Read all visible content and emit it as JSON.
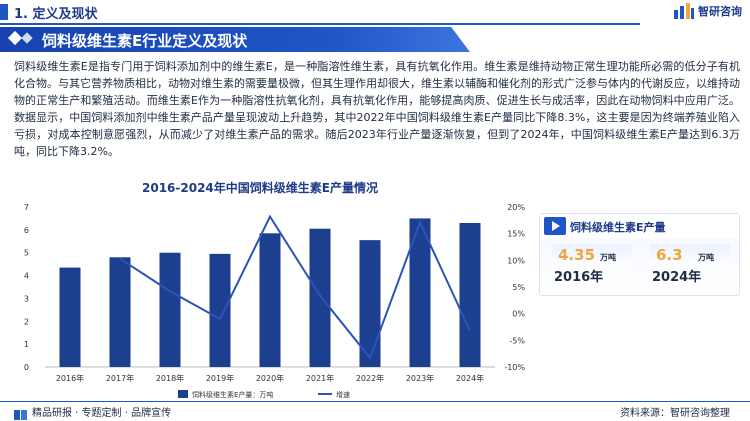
{
  "header": {
    "section_label": "1. 定义及现状",
    "logo_text": "智研咨询"
  },
  "title_banner": {
    "title": "饲料级维生素E行业定义及现状"
  },
  "paragraph": "饲料级维生素E是指专门用于饲料添加剂中的维生素E，是一种脂溶性维生素，具有抗氧化作用。维生素是维持动物正常生理功能所必需的低分子有机化合物。与其它营养物质相比，动物对维生素的需要量极微，但其生理作用却很大，维生素以辅酶和催化剂的形式广泛参与体内的代谢反应，以维持动物的正常生产和繁殖活动。而维生素E作为一种脂溶性抗氧化剂，具有抗氧化作用，能够提高肉质、促进生长与成活率，因此在动物饲料中应用广泛。数据显示，中国饲料添加剂中维生素产品产量呈现波动上升趋势，其中2022年中国饲料级维生素E产量同比下降8.3%，这主要是因为终端养殖业陷入亏损，对成本控制意愿强烈，从而减少了对维生素产品的需求。随后2023年行业产量逐渐恢复，但到了2024年，中国饲料级维生素E产量达到6.3万吨，同比下降3.2%。",
  "chart_data": {
    "type": "bar",
    "title": "2016-2024年中国饲料级维生素E产量情况",
    "categories": [
      "2016年",
      "2017年",
      "2018年",
      "2019年",
      "2020年",
      "2021年",
      "2022年",
      "2023年",
      "2024年"
    ],
    "series": [
      {
        "name": "饲料级维生素E产量：万吨",
        "type": "bar",
        "axis": "left",
        "values": [
          4.35,
          4.8,
          5.0,
          4.95,
          5.85,
          6.05,
          5.55,
          6.5,
          6.3
        ]
      },
      {
        "name": "增速",
        "type": "line",
        "axis": "right",
        "values": [
          null,
          10.3,
          4.2,
          -1.0,
          18.2,
          3.4,
          -8.3,
          17.1,
          -3.2
        ]
      }
    ],
    "left_ticks": [
      "0",
      "1",
      "2",
      "3",
      "4",
      "5",
      "6",
      "7"
    ],
    "right_ticks": [
      "-10%",
      "-5%",
      "0%",
      "5%",
      "10%",
      "15%",
      "20%"
    ],
    "ylim_left": [
      0,
      7
    ],
    "ylim_right": [
      -10,
      20
    ],
    "legend_position": "bottom",
    "colors": {
      "bar": "#1d3f8f",
      "line": "#2a55b8"
    }
  },
  "panel": {
    "title": "饲料级维生素E产量",
    "left": {
      "value": "4.35",
      "unit": "万吨",
      "year": "2016年"
    },
    "right": {
      "value": "6.3",
      "unit": "万吨",
      "year": "2024年"
    }
  },
  "footer": {
    "left_text": "精品研报 · 专题定制 · 品牌宣传",
    "right_text": "资料来源：智研咨询整理"
  },
  "colors": {
    "brand_blue": "#1e56c8",
    "accent_orange": "#f2a53a"
  }
}
